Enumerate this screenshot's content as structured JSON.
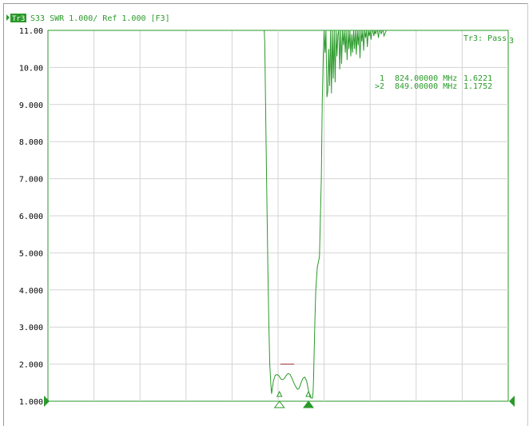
{
  "header": {
    "trace_badge": "Tr3",
    "trace_info": "S33  SWR 1.000/ Ref 1.000 [F3]"
  },
  "status": {
    "pass_label": "Tr3: Pass"
  },
  "markers": [
    {
      "label": "1",
      "freq": "824.00000 MHz",
      "value": "1.6221"
    },
    {
      "label": ">2",
      "freq": "849.00000 MHz",
      "value": "1.1752"
    }
  ],
  "colors": {
    "trace": "#2a9a2a",
    "grid": "#d4d4d4",
    "limit": "#a03030",
    "axis_text": "#000000"
  },
  "chart_data": {
    "type": "line",
    "title": "",
    "xlabel": "",
    "ylabel": "",
    "yticks": [
      "11.00",
      "10.00",
      "9.000",
      "8.000",
      "7.000",
      "6.000",
      "5.000",
      "4.000",
      "3.000",
      "2.000",
      "1.000"
    ],
    "ylim": [
      1,
      11
    ],
    "xlim": [
      0,
      1000
    ],
    "grid": true,
    "limit_line": {
      "x": [
        505,
        535
      ],
      "y": 2.0
    },
    "series": [
      {
        "x": [
          0,
          470,
          471,
          475,
          478,
          480,
          482,
          484,
          486,
          490,
          494,
          498,
          502,
          506,
          510,
          514,
          518,
          522,
          526,
          530,
          534,
          538,
          542,
          546,
          550,
          554,
          558,
          562,
          566,
          570,
          574,
          575,
          576,
          577,
          578,
          580,
          582,
          585,
          590,
          594,
          596,
          598,
          600,
          602,
          604,
          606,
          608,
          610,
          612,
          614,
          616,
          618,
          620,
          622,
          624,
          626,
          628,
          630,
          632,
          634,
          636,
          638,
          640,
          642,
          644,
          646,
          648,
          650,
          652,
          654,
          656,
          658,
          660,
          662,
          664,
          666,
          668,
          670,
          672,
          674,
          676,
          678,
          680,
          682,
          684,
          686,
          688,
          690,
          692,
          694,
          696,
          698,
          700,
          702,
          704,
          706,
          708,
          710,
          712,
          714,
          716,
          718,
          720,
          722,
          724,
          726,
          728,
          730,
          735,
          740,
          745,
          1000
        ],
        "y": [
          11.0,
          11.0,
          10.7,
          7.0,
          4.5,
          3.0,
          2.0,
          1.5,
          1.2,
          1.55,
          1.7,
          1.72,
          1.68,
          1.6,
          1.58,
          1.62,
          1.7,
          1.75,
          1.72,
          1.62,
          1.5,
          1.4,
          1.32,
          1.35,
          1.5,
          1.62,
          1.65,
          1.55,
          1.3,
          1.1,
          1.08,
          1.09,
          1.25,
          1.6,
          2.1,
          3.2,
          4.0,
          4.6,
          4.9,
          7.0,
          9.1,
          10.2,
          11.0,
          10.4,
          11.0,
          9.2,
          9.35,
          10.5,
          9.5,
          11.0,
          9.3,
          11.0,
          9.7,
          11.0,
          9.6,
          11.0,
          10.3,
          10.9,
          11.0,
          9.95,
          11.0,
          10.1,
          11.0,
          10.6,
          11.0,
          10.4,
          11.0,
          10.2,
          11.0,
          10.5,
          11.0,
          10.3,
          10.9,
          10.4,
          11.0,
          10.5,
          11.0,
          10.35,
          11.0,
          10.6,
          11.0,
          10.25,
          11.0,
          10.7,
          11.0,
          10.45,
          11.0,
          10.8,
          11.0,
          10.55,
          11.0,
          10.85,
          11.0,
          10.75,
          11.0,
          11.0,
          10.85,
          11.0,
          10.9,
          11.0,
          11.0,
          10.8,
          11.0,
          11.0,
          10.9,
          11.0,
          11.0,
          10.85,
          11.0,
          11.0,
          11.0,
          11.0
        ]
      }
    ],
    "marker_points": [
      {
        "label": "1",
        "x": 503,
        "y": 1.0,
        "filled": false
      },
      {
        "label": "2",
        "x": 566,
        "y": 1.0,
        "filled": true
      }
    ]
  }
}
